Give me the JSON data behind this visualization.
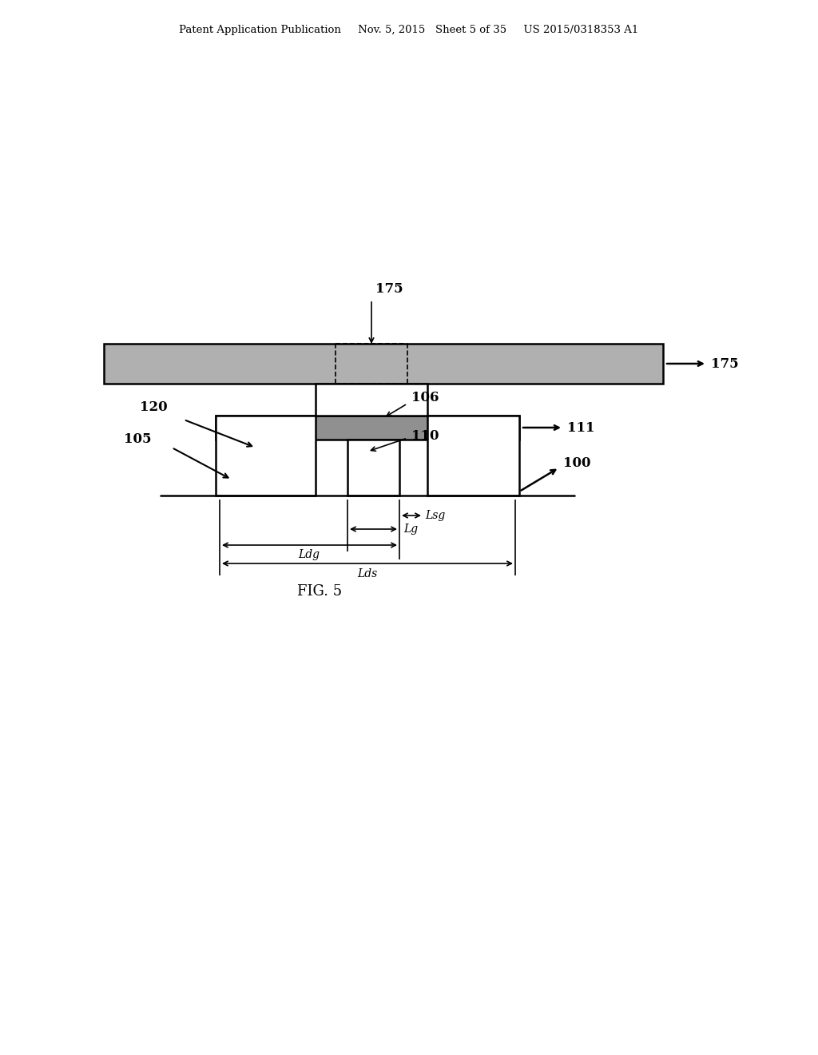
{
  "background_color": "#ffffff",
  "line_color": "#000000",
  "header_text": "Patent Application Publication    Nov. 5, 2015   Sheet 5 of 35    US 2015/0318353 A1",
  "fig_label": "FIG. 5",
  "labels": {
    "175_top": "175",
    "175_right": "175",
    "106": "106",
    "110": "110",
    "111": "111",
    "100": "100",
    "120": "120",
    "105": "105",
    "Lsg": "Lsg",
    "Lg": "Lg",
    "Ldg": "Ldg",
    "Lds": "Lds"
  }
}
